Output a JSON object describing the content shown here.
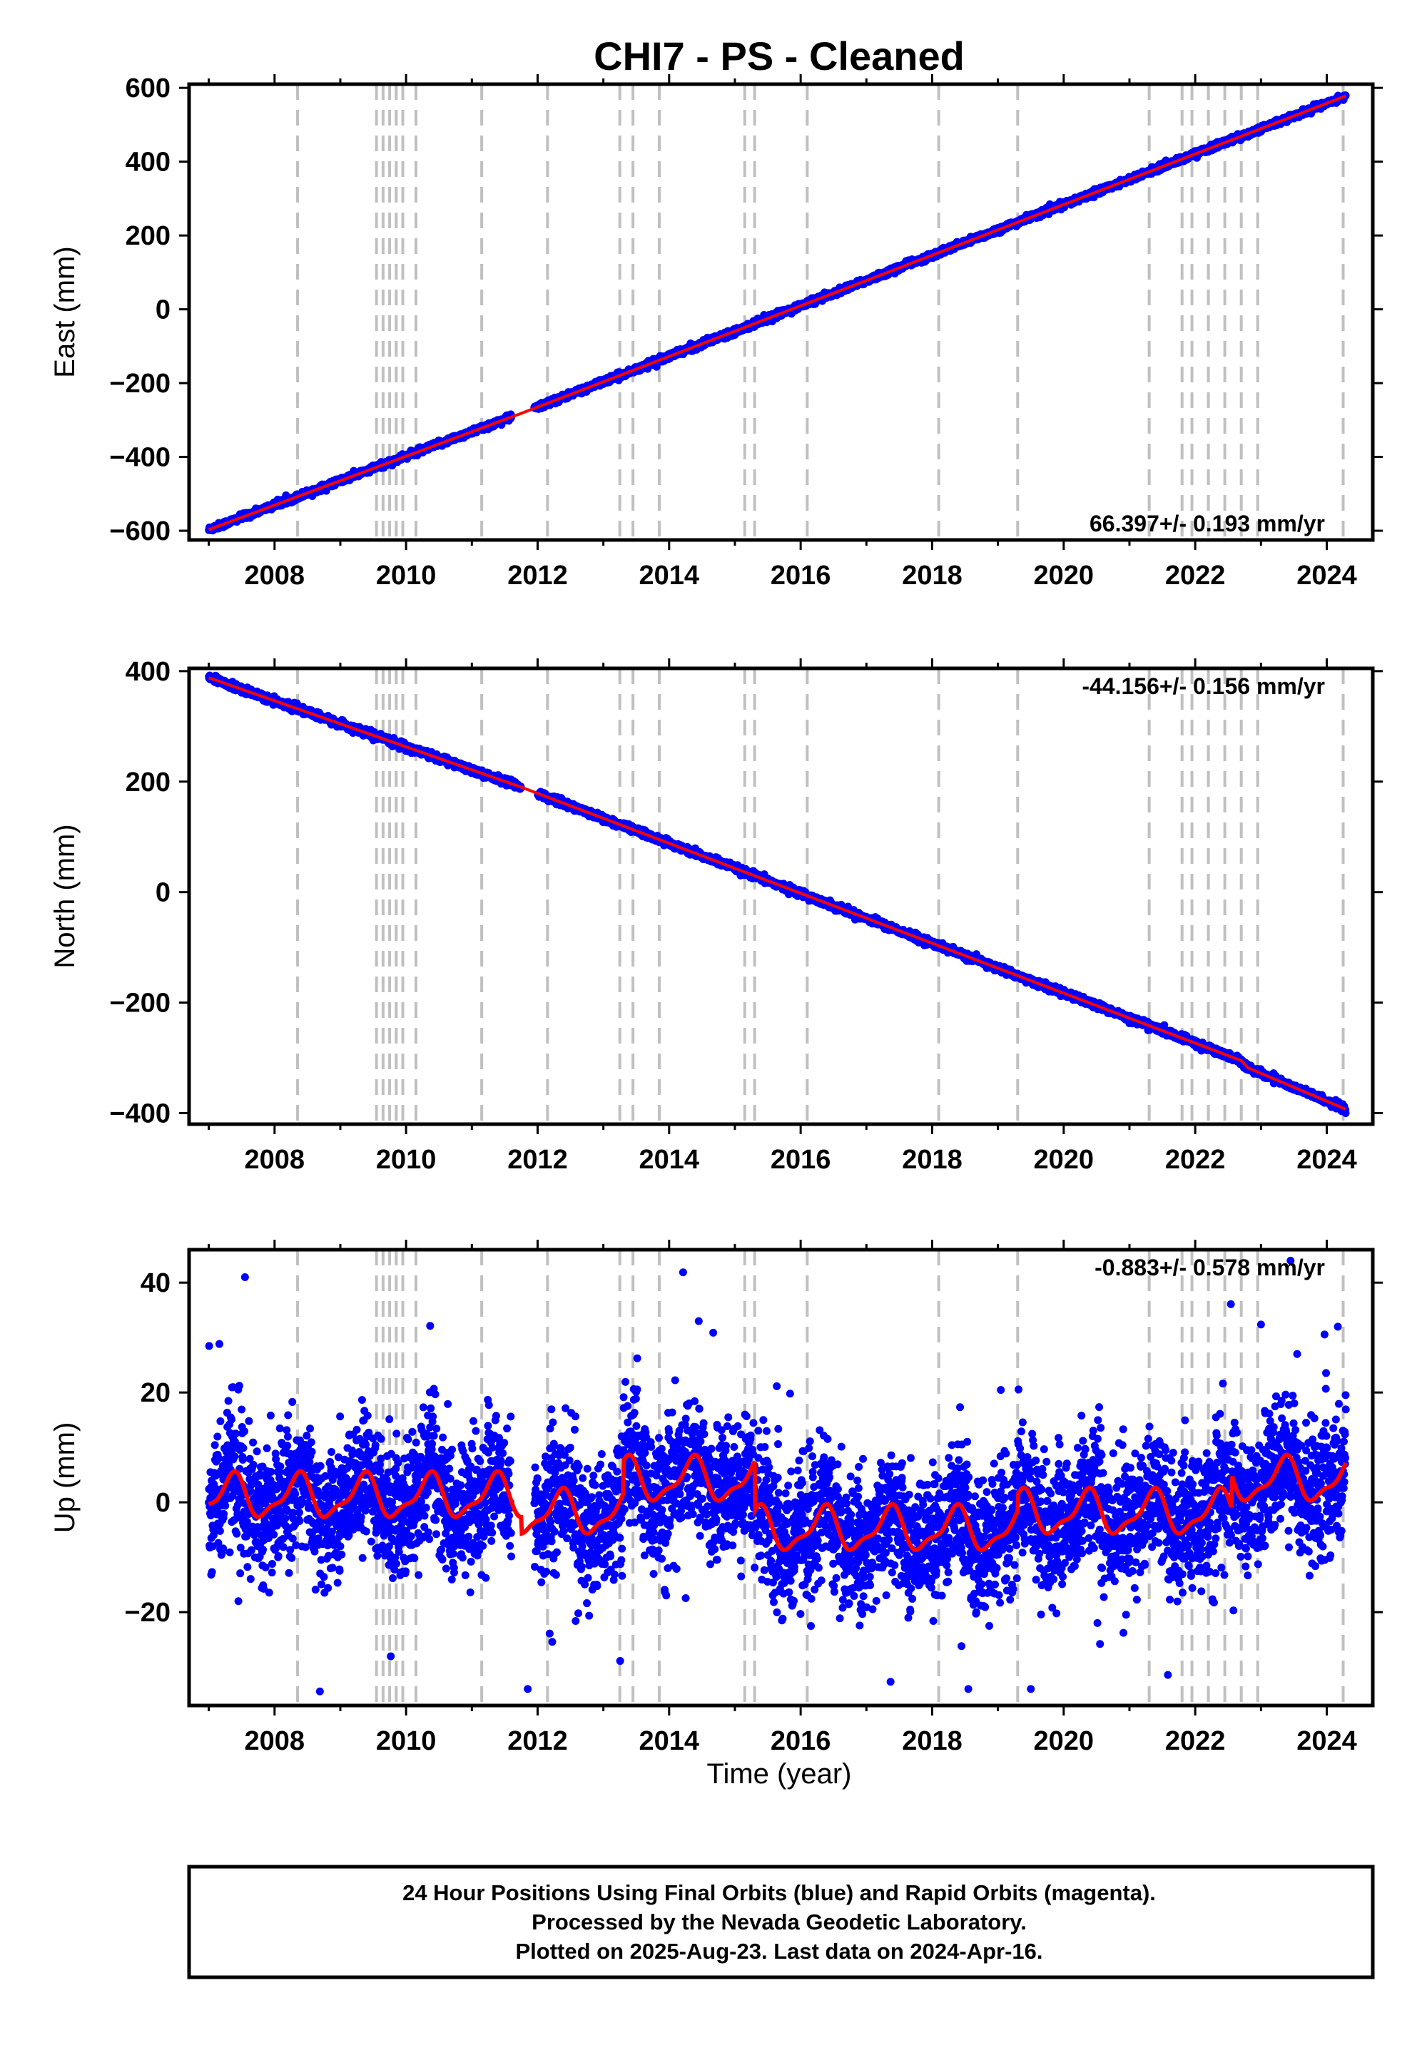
{
  "page": {
    "title": "CHI7  - PS - Cleaned",
    "xlabel": "Time (year)",
    "footer_lines": [
      "24 Hour Positions Using Final Orbits (blue) and Rapid Orbits (magenta).",
      "Processed by the Nevada Geodetic Laboratory.",
      "Plotted on 2025-Aug-23. Last data on 2024-Apr-16."
    ]
  },
  "colors": {
    "data_points": "#0000ff",
    "model_line": "#ff0000",
    "equipment_change_lines": "#c0c0c0",
    "frame": "#000000"
  },
  "chart_data": [
    {
      "type": "scatter",
      "title": "CHI7  - PS - Cleaned",
      "ylabel": "East (mm)",
      "xlim": [
        2006.7,
        2024.7
      ],
      "ylim": [
        -625,
        610
      ],
      "x_ticks": [
        2008,
        2010,
        2012,
        2014,
        2016,
        2018,
        2020,
        2022,
        2024
      ],
      "y_ticks": [
        -600,
        -400,
        -200,
        0,
        200,
        400,
        600
      ],
      "rate_label": "66.397+/- 0.193 mm/yr",
      "rate_position": "bottom-right",
      "series": [
        {
          "role": "daily positions",
          "color": "#0000ff",
          "x": [
            2007.0,
            2011.75,
            2024.29
          ],
          "y": [
            -597,
            -282,
            578
          ]
        },
        {
          "role": "trajectory model",
          "color": "#ff0000",
          "x": [
            2007.0,
            2024.29
          ],
          "y": [
            -597,
            578
          ]
        }
      ],
      "gap": [
        2011.6,
        2011.95
      ],
      "scatter_mm": 4,
      "steps": []
    },
    {
      "type": "scatter",
      "ylabel": "North (mm)",
      "xlim": [
        2006.7,
        2024.7
      ],
      "ylim": [
        -420,
        405
      ],
      "x_ticks": [
        2008,
        2010,
        2012,
        2014,
        2016,
        2018,
        2020,
        2022,
        2024
      ],
      "y_ticks": [
        -400,
        -200,
        0,
        200,
        400
      ],
      "rate_label": "-44.156+/- 0.156 mm/yr",
      "rate_position": "top-right",
      "series": [
        {
          "role": "daily positions",
          "color": "#0000ff",
          "x": [
            2007.0,
            2011.75,
            2022.7,
            2022.8,
            2024.29
          ],
          "y": [
            388,
            190,
            -305,
            -318,
            -393
          ]
        },
        {
          "role": "trajectory model",
          "color": "#ff0000",
          "x": [
            2007.0,
            2024.29
          ],
          "y": [
            388,
            -393
          ]
        }
      ],
      "gap": [
        2011.75,
        2012.0
      ],
      "scatter_mm": 3,
      "steps": [
        {
          "x": 2022.72,
          "dy": -13
        }
      ]
    },
    {
      "type": "scatter",
      "ylabel": "Up (mm)",
      "xlabel": "Time (year)",
      "xlim": [
        2006.7,
        2024.7
      ],
      "ylim": [
        -37,
        46
      ],
      "x_ticks": [
        2008,
        2010,
        2012,
        2014,
        2016,
        2018,
        2020,
        2022,
        2024
      ],
      "y_ticks": [
        -20,
        0,
        20,
        40
      ],
      "rate_label": "-0.883+/- 0.578 mm/yr",
      "rate_position": "top-right",
      "series": [
        {
          "role": "daily positions",
          "color": "#0000ff",
          "note": "dense daily scatter around seasonal model, spread about +/-10 mm with outliers from -34 to 44 mm"
        },
        {
          "role": "trajectory model",
          "color": "#ff0000",
          "x": [
            2007.0,
            2024.29
          ],
          "y": [
            5,
            3
          ]
        }
      ],
      "offsets": [
        {
          "from": 2007.0,
          "to": 2011.75,
          "base": 1
        },
        {
          "from": 2011.75,
          "to": 2013.3,
          "base": -2
        },
        {
          "from": 2013.3,
          "to": 2015.3,
          "base": 4
        },
        {
          "from": 2015.3,
          "to": 2019.3,
          "base": -5
        },
        {
          "from": 2019.3,
          "to": 2022.55,
          "base": -2
        },
        {
          "from": 2022.55,
          "to": 2024.3,
          "base": 4
        }
      ],
      "seasonal_amplitude_mm": 4,
      "scatter_mm": 6,
      "gap": [
        2011.6,
        2011.95
      ]
    }
  ],
  "equipment_changes": [
    2008.35,
    2009.55,
    2009.65,
    2009.75,
    2009.85,
    2009.95,
    2010.15,
    2011.15,
    2012.15,
    2013.25,
    2013.45,
    2013.85,
    2015.15,
    2015.3,
    2016.1,
    2018.1,
    2019.3,
    2021.3,
    2021.8,
    2021.95,
    2022.2,
    2022.45,
    2022.7,
    2022.95,
    2024.25
  ]
}
